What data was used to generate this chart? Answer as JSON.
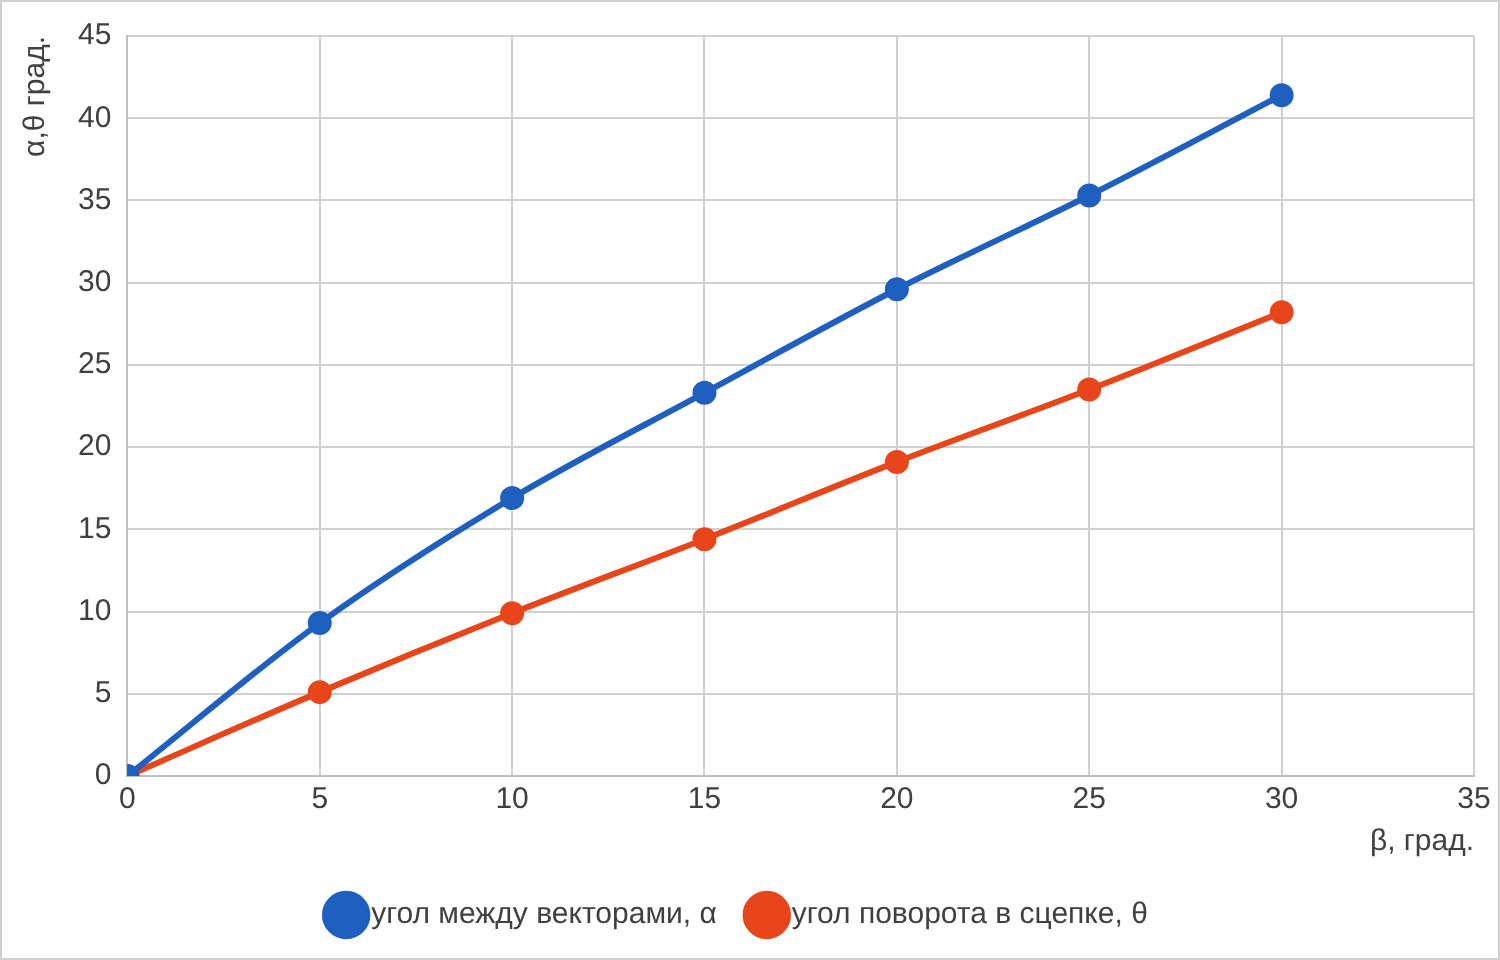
{
  "chart_data": {
    "type": "line",
    "xlabel": "β, град.",
    "ylabel": "α,θ град.",
    "x": [
      0,
      5,
      10,
      15,
      20,
      25,
      30
    ],
    "series": [
      {
        "name": "угол между векторами, α",
        "color": "#1f5fbf",
        "values": [
          0,
          9.3,
          16.9,
          23.3,
          29.6,
          35.3,
          41.4
        ]
      },
      {
        "name": "угол поворота в сцепке, θ",
        "color": "#e8461a",
        "values": [
          0,
          5.1,
          9.9,
          14.4,
          19.1,
          23.5,
          28.2
        ]
      }
    ],
    "xlim": [
      0,
      35
    ],
    "xticks": [
      0,
      5,
      10,
      15,
      20,
      25,
      30,
      35
    ],
    "ylim": [
      0,
      45
    ],
    "yticks": [
      0,
      5,
      10,
      15,
      20,
      25,
      30,
      35,
      40,
      45
    ],
    "grid": true,
    "legend": "bottom",
    "marker": "circle",
    "line_style": "solid"
  }
}
